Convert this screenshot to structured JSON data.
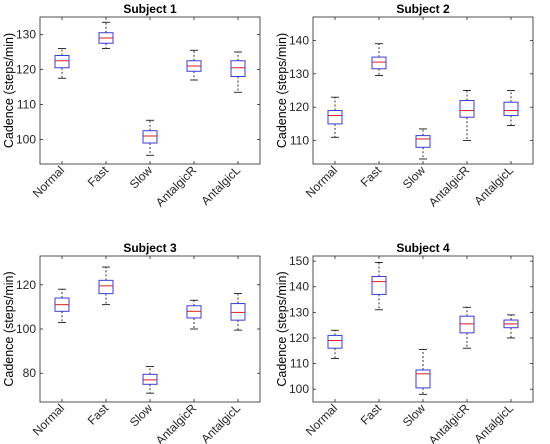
{
  "figure": {
    "ylabel": "Cadence (steps/min)",
    "colors": {
      "box": "#3b3bd9",
      "median": "#d62020",
      "whisker": "#000000",
      "axes": "#262626"
    }
  },
  "chart_data": [
    {
      "type": "box",
      "title": "Subject 1",
      "ylabel": "Cadence (steps/min)",
      "categories": [
        "Normal",
        "Fast",
        "Slow",
        "AntalgicR",
        "AntalgicL"
      ],
      "ylim": [
        93,
        135
      ],
      "yticks": [
        100,
        110,
        120,
        130
      ],
      "boxes": [
        {
          "min": 117.5,
          "q1": 120.5,
          "median": 122.5,
          "q3": 124.0,
          "max": 126.0
        },
        {
          "min": 126.0,
          "q1": 127.5,
          "median": 129.0,
          "q3": 130.5,
          "max": 133.5
        },
        {
          "min": 95.5,
          "q1": 99.0,
          "median": 101.0,
          "q3": 102.5,
          "max": 105.5
        },
        {
          "min": 117.0,
          "q1": 119.5,
          "median": 121.0,
          "q3": 122.5,
          "max": 125.5
        },
        {
          "min": 113.5,
          "q1": 118.0,
          "median": 120.5,
          "q3": 122.5,
          "max": 125.0
        }
      ]
    },
    {
      "type": "box",
      "title": "Subject 2",
      "ylabel": "Cadence (steps/min)",
      "categories": [
        "Normal",
        "Fast",
        "Slow",
        "AntalgicR",
        "AntalgicL"
      ],
      "ylim": [
        103,
        147
      ],
      "yticks": [
        110,
        120,
        130,
        140
      ],
      "boxes": [
        {
          "min": 111.0,
          "q1": 115.0,
          "median": 117.5,
          "q3": 119.0,
          "max": 123.0
        },
        {
          "min": 129.5,
          "q1": 131.5,
          "median": 133.5,
          "q3": 135.0,
          "max": 139.0
        },
        {
          "min": 104.5,
          "q1": 108.0,
          "median": 110.5,
          "q3": 111.5,
          "max": 113.5
        },
        {
          "min": 110.0,
          "q1": 117.0,
          "median": 119.0,
          "q3": 122.0,
          "max": 125.0
        },
        {
          "min": 114.5,
          "q1": 117.5,
          "median": 119.0,
          "q3": 121.5,
          "max": 125.0
        }
      ]
    },
    {
      "type": "box",
      "title": "Subject 3",
      "ylabel": "Cadence (steps/min)",
      "categories": [
        "Normal",
        "Fast",
        "Slow",
        "AntalgicR",
        "AntalgicL"
      ],
      "ylim": [
        67,
        133
      ],
      "yticks": [
        80,
        100,
        120
      ],
      "boxes": [
        {
          "min": 103.0,
          "q1": 108.0,
          "median": 111.0,
          "q3": 114.0,
          "max": 118.0
        },
        {
          "min": 111.0,
          "q1": 116.0,
          "median": 119.5,
          "q3": 122.0,
          "max": 128.0
        },
        {
          "min": 71.0,
          "q1": 75.0,
          "median": 77.0,
          "q3": 79.5,
          "max": 83.0
        },
        {
          "min": 100.0,
          "q1": 105.0,
          "median": 108.0,
          "q3": 110.5,
          "max": 113.0
        },
        {
          "min": 99.5,
          "q1": 104.0,
          "median": 107.5,
          "q3": 111.5,
          "max": 116.0
        }
      ]
    },
    {
      "type": "box",
      "title": "Subject 4",
      "ylabel": "Cadence (steps/min)",
      "categories": [
        "Normal",
        "Fast",
        "Slow",
        "AntalgicR",
        "AntalgicL"
      ],
      "ylim": [
        95,
        152
      ],
      "yticks": [
        100,
        110,
        120,
        130,
        140,
        150
      ],
      "boxes": [
        {
          "min": 112.0,
          "q1": 116.0,
          "median": 119.0,
          "q3": 121.0,
          "max": 123.0
        },
        {
          "min": 131.0,
          "q1": 137.0,
          "median": 142.0,
          "q3": 144.0,
          "max": 149.5
        },
        {
          "min": 98.0,
          "q1": 100.5,
          "median": 106.0,
          "q3": 107.5,
          "max": 115.5
        },
        {
          "min": 116.0,
          "q1": 122.0,
          "median": 125.5,
          "q3": 128.5,
          "max": 132.0
        },
        {
          "min": 120.0,
          "q1": 124.0,
          "median": 125.5,
          "q3": 127.0,
          "max": 129.0
        }
      ]
    }
  ]
}
